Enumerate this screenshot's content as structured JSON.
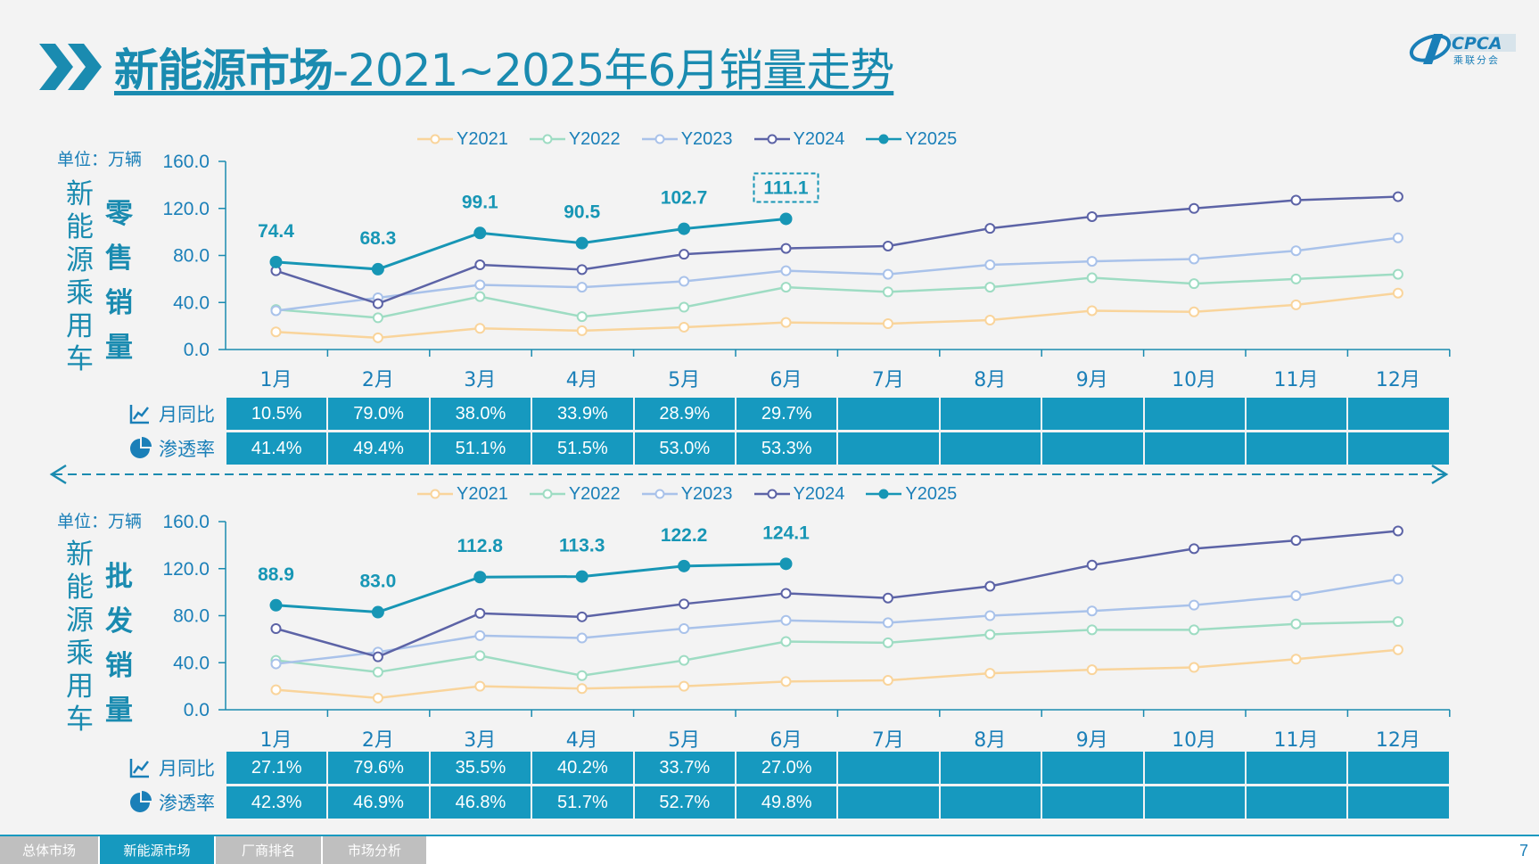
{
  "title": {
    "main": "新能源市场",
    "rest": "-2021~2025年6月销量走势"
  },
  "logo": {
    "text": "CPCA",
    "sub": "乘联分会",
    "icon": "cpca-logo-icon"
  },
  "legend": [
    "Y2021",
    "Y2022",
    "Y2023",
    "Y2024",
    "Y2025"
  ],
  "colors": {
    "Y2021": "#f9d49b",
    "Y2022": "#9edcc3",
    "Y2023": "#a9c2ea",
    "Y2024": "#5c63a6",
    "Y2025": "#1796b5",
    "accent": "#1a8bb0",
    "cell_bg": "#1699bf"
  },
  "row_labels": {
    "yoy": "月同比",
    "penetration": "渗透率"
  },
  "row_icons": {
    "yoy": "trend-chart-icon",
    "penetration": "pie-chart-icon"
  },
  "retail": {
    "unit": "单位：万辆",
    "side_title_1": "新能源乘用车",
    "side_title_2": "零售销量",
    "yoy": [
      "10.5%",
      "79.0%",
      "38.0%",
      "33.9%",
      "28.9%",
      "29.7%",
      "",
      "",
      "",
      "",
      "",
      ""
    ],
    "penetration": [
      "41.4%",
      "49.4%",
      "51.1%",
      "51.5%",
      "53.0%",
      "53.3%",
      "",
      "",
      "",
      "",
      "",
      ""
    ]
  },
  "wholesale": {
    "unit": "单位：万辆",
    "side_title_1": "新能源乘用车",
    "side_title_2": "批发销量",
    "yoy": [
      "27.1%",
      "79.6%",
      "35.5%",
      "40.2%",
      "33.7%",
      "27.0%",
      "",
      "",
      "",
      "",
      "",
      ""
    ],
    "penetration": [
      "42.3%",
      "46.9%",
      "46.8%",
      "51.7%",
      "52.7%",
      "49.8%",
      "",
      "",
      "",
      "",
      "",
      ""
    ]
  },
  "chart_data": [
    {
      "type": "line",
      "title": "零售销量",
      "ylabel": "单位：万辆",
      "ylim": [
        0,
        160
      ],
      "yticks": [
        "0.0",
        "40.0",
        "80.0",
        "120.0",
        "160.0"
      ],
      "categories": [
        "1月",
        "2月",
        "3月",
        "4月",
        "5月",
        "6月",
        "7月",
        "8月",
        "9月",
        "10月",
        "11月",
        "12月"
      ],
      "highlight_box_index": 5,
      "series": [
        {
          "name": "Y2021",
          "values": [
            15,
            10,
            18,
            16,
            19,
            23,
            22,
            25,
            33,
            32,
            38,
            48
          ]
        },
        {
          "name": "Y2022",
          "values": [
            34,
            27,
            45,
            28,
            36,
            53,
            49,
            53,
            61,
            56,
            60,
            64
          ]
        },
        {
          "name": "Y2023",
          "values": [
            33,
            44,
            55,
            53,
            58,
            67,
            64,
            72,
            75,
            77,
            84,
            95
          ]
        },
        {
          "name": "Y2024",
          "values": [
            67,
            39,
            72,
            68,
            81,
            86,
            88,
            103,
            113,
            120,
            127,
            130
          ]
        },
        {
          "name": "Y2025",
          "values": [
            74.4,
            68.3,
            99.1,
            90.5,
            102.7,
            111.1,
            null,
            null,
            null,
            null,
            null,
            null
          ],
          "labels": [
            "74.4",
            "68.3",
            "99.1",
            "90.5",
            "102.7",
            "111.1"
          ]
        }
      ],
      "grid": false,
      "legend": "top"
    },
    {
      "type": "line",
      "title": "批发销量",
      "ylabel": "单位：万辆",
      "ylim": [
        0,
        160
      ],
      "yticks": [
        "0.0",
        "40.0",
        "80.0",
        "120.0",
        "160.0"
      ],
      "categories": [
        "1月",
        "2月",
        "3月",
        "4月",
        "5月",
        "6月",
        "7月",
        "8月",
        "9月",
        "10月",
        "11月",
        "12月"
      ],
      "highlight_box_index": null,
      "series": [
        {
          "name": "Y2021",
          "values": [
            17,
            10,
            20,
            18,
            20,
            24,
            25,
            31,
            34,
            36,
            43,
            51
          ]
        },
        {
          "name": "Y2022",
          "values": [
            42,
            32,
            46,
            29,
            42,
            58,
            57,
            64,
            68,
            68,
            73,
            75
          ]
        },
        {
          "name": "Y2023",
          "values": [
            39,
            49,
            63,
            61,
            69,
            76,
            74,
            80,
            84,
            89,
            97,
            111
          ]
        },
        {
          "name": "Y2024",
          "values": [
            69,
            45,
            82,
            79,
            90,
            99,
            95,
            105,
            123,
            137,
            144,
            152
          ]
        },
        {
          "name": "Y2025",
          "values": [
            88.9,
            83.0,
            112.8,
            113.3,
            122.2,
            124.1,
            null,
            null,
            null,
            null,
            null,
            null
          ],
          "labels": [
            "88.9",
            "83.0",
            "112.8",
            "113.3",
            "122.2",
            "124.1"
          ]
        }
      ],
      "grid": false,
      "legend": "top"
    }
  ],
  "footer": {
    "tabs": [
      "总体市场",
      "新能源市场",
      "厂商排名",
      "市场分析"
    ],
    "active_tab": 1,
    "page": "7"
  }
}
